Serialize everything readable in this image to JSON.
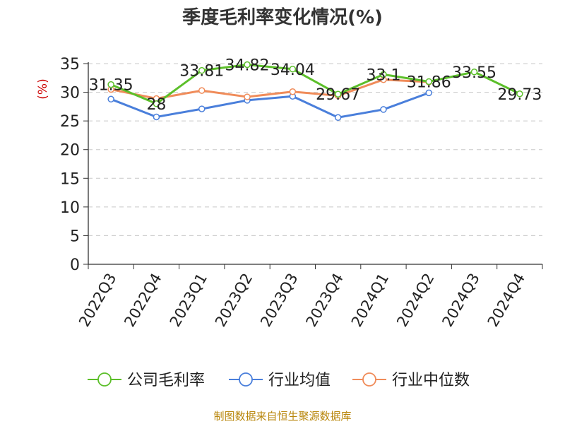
{
  "chart_data": {
    "type": "line",
    "title": "季度毛利率变化情况(%)",
    "ylabel": "(%)",
    "xlabel": "",
    "ylim": [
      0,
      35
    ],
    "y_ticks": [
      0,
      5,
      10,
      15,
      20,
      25,
      30,
      35
    ],
    "grid": true,
    "legend_position": "bottom",
    "categories": [
      "2022Q3",
      "2022Q4",
      "2023Q1",
      "2023Q2",
      "2023Q3",
      "2023Q4",
      "2024Q1",
      "2024Q2",
      "2024Q3",
      "2024Q4"
    ],
    "series": [
      {
        "name": "公司毛利率",
        "color": "#5cbf2a",
        "values": [
          31.35,
          28,
          33.81,
          34.82,
          34.04,
          29.67,
          33.1,
          31.86,
          33.55,
          29.73
        ],
        "labels": [
          "31.35",
          "28",
          "33.81",
          "34.82",
          "34.04",
          "29.67",
          "33.1",
          "31.86",
          "33.55",
          "29.73"
        ]
      },
      {
        "name": "行业均值",
        "color": "#4a7fdb",
        "values": [
          28.8,
          25.7,
          27.1,
          28.6,
          29.3,
          25.6,
          27.0,
          29.9,
          null,
          null
        ]
      },
      {
        "name": "行业中位数",
        "color": "#f08c5a",
        "values": [
          30.5,
          28.9,
          30.3,
          29.2,
          30.1,
          29.4,
          32.2,
          31.8,
          null,
          null
        ]
      }
    ]
  },
  "footer": "制图数据来自恒生聚源数据库"
}
